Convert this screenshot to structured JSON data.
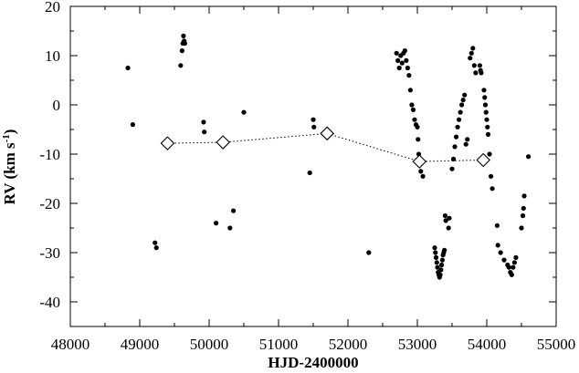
{
  "chart_data": {
    "type": "scatter",
    "title": "",
    "xlabel": "HJD-2400000",
    "ylabel": "RV (km s-1)",
    "ylabel_parts": [
      "RV (km s",
      "-1",
      ")"
    ],
    "xlim": [
      48000,
      55000
    ],
    "ylim": [
      -45,
      20
    ],
    "x_ticks": [
      48000,
      49000,
      50000,
      51000,
      52000,
      53000,
      54000,
      55000
    ],
    "y_ticks": [
      -40,
      -30,
      -20,
      -10,
      0,
      10,
      20
    ],
    "x_tick_labels": [
      "48000",
      "49000",
      "50000",
      "51000",
      "52000",
      "53000",
      "54000",
      "55000"
    ],
    "y_tick_labels": [
      "-40",
      "-30",
      "-20",
      "-10",
      "0",
      "10",
      "20"
    ],
    "grid": false,
    "legend": "none",
    "series": [
      {
        "marker": "dot",
        "color": "#000000",
        "x": [
          48830,
          48900,
          49220,
          49240,
          49590,
          49610,
          49620,
          49630,
          49640,
          49650,
          49920,
          49930,
          50100,
          50300,
          50350,
          50500,
          51450,
          51500,
          51510,
          52300,
          52700,
          52720,
          52740,
          52760,
          52780,
          52800,
          52820,
          52840,
          52860,
          52880,
          52900,
          52920,
          52940,
          52960,
          52980,
          53000,
          53010,
          53020,
          53030,
          53050,
          53080,
          53250,
          53260,
          53270,
          53280,
          53290,
          53300,
          53310,
          53320,
          53330,
          53340,
          53350,
          53360,
          53370,
          53380,
          53390,
          53400,
          53410,
          53450,
          53460,
          53500,
          53520,
          53540,
          53560,
          53580,
          53600,
          53620,
          53640,
          53660,
          53680,
          53700,
          53720,
          53760,
          53780,
          53800,
          53820,
          53840,
          53900,
          53910,
          53920,
          53960,
          53970,
          53980,
          53990,
          54000,
          54010,
          54020,
          54040,
          54060,
          54080,
          54150,
          54160,
          54200,
          54250,
          54300,
          54320,
          54340,
          54360,
          54380,
          54400,
          54420,
          54500,
          54520,
          54530,
          54540,
          54600
        ],
        "y": [
          7.5,
          -4,
          -28,
          -29,
          8,
          11,
          12.5,
          14,
          13,
          12.5,
          -3.5,
          -5.5,
          -24,
          -25,
          -21.5,
          -1.5,
          -13.8,
          -3,
          -4.5,
          -30,
          10.5,
          9,
          7.5,
          10,
          8.5,
          10.5,
          11,
          9,
          7.5,
          6,
          3,
          0,
          -1,
          -3,
          -4,
          -4.5,
          -7,
          -10,
          -12,
          -13.5,
          -14.5,
          -29,
          -30,
          -31,
          -32,
          -33,
          -34,
          -34.5,
          -35,
          -34.5,
          -33.5,
          -32.5,
          -31.5,
          -30.5,
          -30,
          -29.5,
          -22.5,
          -23.5,
          -25,
          -23,
          -13,
          -11,
          -8.5,
          -6.5,
          -4.5,
          -3,
          -1.5,
          0,
          1,
          2,
          -8,
          -7,
          9.5,
          10.5,
          11.5,
          8,
          6.5,
          8,
          7,
          6.5,
          3,
          1.5,
          0,
          -1.5,
          -3,
          -4.5,
          -6,
          -10,
          -14.5,
          -17,
          -24.5,
          -28.5,
          -30,
          -31.5,
          -32.5,
          -33,
          -34,
          -34.5,
          -33,
          -32,
          -31,
          -25,
          -22.5,
          -21,
          -18.5,
          -10.5
        ]
      },
      {
        "marker": "open-diamond",
        "color": "#000000",
        "line": "dotted",
        "x": [
          49400,
          50200,
          51700,
          53030,
          53950
        ],
        "y": [
          -7.8,
          -7.6,
          -5.8,
          -11.5,
          -11.2
        ]
      }
    ]
  }
}
